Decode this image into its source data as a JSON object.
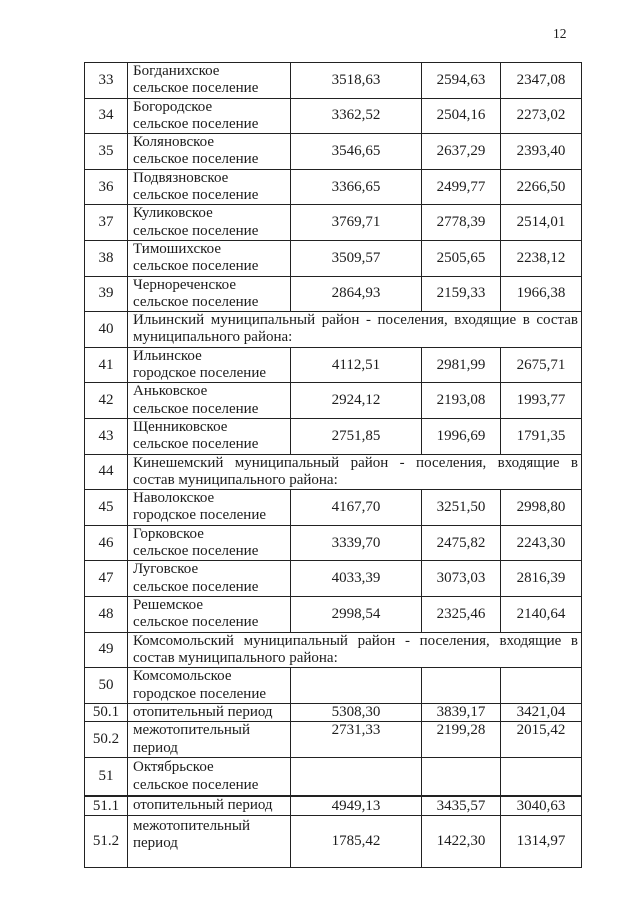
{
  "page": {
    "number": "12"
  },
  "table": {
    "rows": [
      {
        "type": "data",
        "num": "33",
        "name_lines": [
          "Богданихское",
          "сельское поселение"
        ],
        "values": [
          "3518,63",
          "2594,63",
          "2347,08"
        ]
      },
      {
        "type": "data",
        "num": "34",
        "name_lines": [
          "Богородское",
          "сельское поселение"
        ],
        "values": [
          "3362,52",
          "2504,16",
          "2273,02"
        ]
      },
      {
        "type": "data",
        "num": "35",
        "name_lines": [
          "Коляновское",
          "сельское поселение"
        ],
        "values": [
          "3546,65",
          "2637,29",
          "2393,40"
        ]
      },
      {
        "type": "data",
        "num": "36",
        "name_lines": [
          "Подвязновское",
          "сельское поселение"
        ],
        "values": [
          "3366,65",
          "2499,77",
          "2266,50"
        ]
      },
      {
        "type": "data",
        "num": "37",
        "name_lines": [
          "Куликовское",
          "сельское поселение"
        ],
        "values": [
          "3769,71",
          "2778,39",
          "2514,01"
        ]
      },
      {
        "type": "data",
        "num": "38",
        "name_lines": [
          "Тимошихское",
          "сельское поселение"
        ],
        "values": [
          "3509,57",
          "2505,65",
          "2238,12"
        ]
      },
      {
        "type": "data",
        "num": "39",
        "name_lines": [
          "Чернореченское",
          "сельское поселение"
        ],
        "values": [
          "2864,93",
          "2159,33",
          "1966,38"
        ]
      },
      {
        "type": "section",
        "num": "40",
        "text_lines": [
          "Ильинский муниципальный район - поселения, входящие в состав",
          "муниципального района:"
        ]
      },
      {
        "type": "data",
        "num": "41",
        "name_lines": [
          "Ильинское",
          "городское поселение"
        ],
        "values": [
          "4112,51",
          "2981,99",
          "2675,71"
        ]
      },
      {
        "type": "data",
        "num": "42",
        "name_lines": [
          "Аньковское",
          "сельское поселение"
        ],
        "values": [
          "2924,12",
          "2193,08",
          "1993,77"
        ]
      },
      {
        "type": "data",
        "num": "43",
        "name_lines": [
          "Щенниковское",
          "сельское поселение"
        ],
        "values": [
          "2751,85",
          "1996,69",
          "1791,35"
        ]
      },
      {
        "type": "section",
        "num": "44",
        "text_lines": [
          "Кинешемский муниципальный район - поселения, входящие в",
          "состав муниципального района:"
        ]
      },
      {
        "type": "data",
        "num": "45",
        "name_lines": [
          "Наволокское",
          "городское поселение"
        ],
        "values": [
          "4167,70",
          "3251,50",
          "2998,80"
        ]
      },
      {
        "type": "data",
        "num": "46",
        "name_lines": [
          "Горковское",
          "сельское поселение"
        ],
        "values": [
          "3339,70",
          "2475,82",
          "2243,30"
        ]
      },
      {
        "type": "data",
        "num": "47",
        "name_lines": [
          "Луговское",
          "сельское поселение"
        ],
        "values": [
          "4033,39",
          "3073,03",
          "2816,39"
        ]
      },
      {
        "type": "data",
        "num": "48",
        "name_lines": [
          "Решемское",
          "сельское поселение"
        ],
        "values": [
          "2998,54",
          "2325,46",
          "2140,64"
        ]
      },
      {
        "type": "section",
        "num": "49",
        "text_lines": [
          "Комсомольский муниципальный район - поселения, входящие в",
          "состав муниципального района:"
        ]
      },
      {
        "type": "data",
        "num": "50",
        "name_lines": [
          "Комсомольское",
          "городское поселение"
        ],
        "values": [
          "",
          "",
          ""
        ]
      },
      {
        "type": "data",
        "num": "50.1",
        "name_lines": [
          "отопительный период"
        ],
        "values": [
          "5308,30",
          "3839,17",
          "3421,04"
        ]
      },
      {
        "type": "data",
        "num": "50.2",
        "name_lines": [
          "межотопительный",
          "период"
        ],
        "values": [
          "2731,33",
          "2199,28",
          "2015,42"
        ]
      },
      {
        "type": "data",
        "num": "51",
        "name_lines": [
          "Октябрьское",
          "сельское поселение"
        ],
        "values": [
          "",
          "",
          ""
        ]
      },
      {
        "type": "data",
        "num": "51.1",
        "name_lines": [
          "отопительный период"
        ],
        "values": [
          "4949,13",
          "3435,57",
          "3040,63"
        ]
      },
      {
        "type": "data",
        "num": "51.2",
        "name_lines": [
          "межотопительный",
          "период"
        ],
        "values": [
          "1785,42",
          "1422,30",
          "1314,97"
        ]
      }
    ]
  }
}
